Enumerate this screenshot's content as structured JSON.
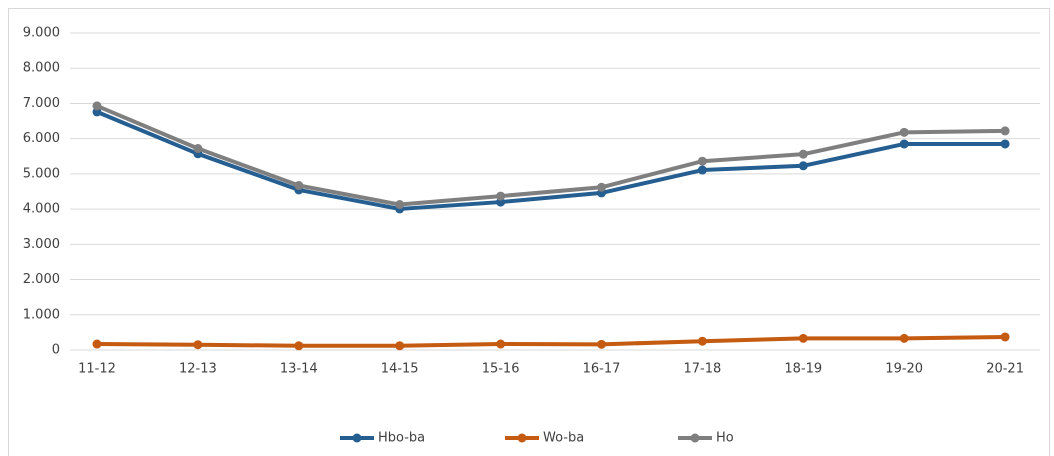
{
  "chart_data": {
    "type": "line",
    "categories": [
      "11-12",
      "12-13",
      "13-14",
      "14-15",
      "15-16",
      "16-17",
      "17-18",
      "18-19",
      "19-20",
      "20-21"
    ],
    "series": [
      {
        "name": "Hbo-ba",
        "color": "#255e91",
        "values": [
          6760,
          5570,
          4545,
          4005,
          4200,
          4460,
          5110,
          5230,
          5850,
          5850
        ]
      },
      {
        "name": "Wo-ba",
        "color": "#c55a11",
        "values": [
          170,
          150,
          120,
          120,
          170,
          160,
          250,
          330,
          330,
          370
        ]
      },
      {
        "name": "Ho",
        "color": "#7f7f7f",
        "values": [
          6930,
          5720,
          4670,
          4130,
          4370,
          4620,
          5360,
          5560,
          6180,
          6220
        ]
      }
    ],
    "ylim": [
      0,
      9000
    ],
    "yticks": [
      0,
      {
        "value": 1000,
        "label": "1.000"
      },
      {
        "value": 2000,
        "label": "2.000"
      },
      {
        "value": 3000,
        "label": "3.000"
      },
      {
        "value": 4000,
        "label": "4.000"
      },
      {
        "value": 5000,
        "label": "5.000"
      },
      {
        "value": 6000,
        "label": "6.000"
      },
      {
        "value": 7000,
        "label": "7.000"
      },
      {
        "value": 8000,
        "label": "8.000"
      },
      {
        "value": 9000,
        "label": "9.000"
      }
    ],
    "grid": true,
    "legend": "bottom"
  }
}
